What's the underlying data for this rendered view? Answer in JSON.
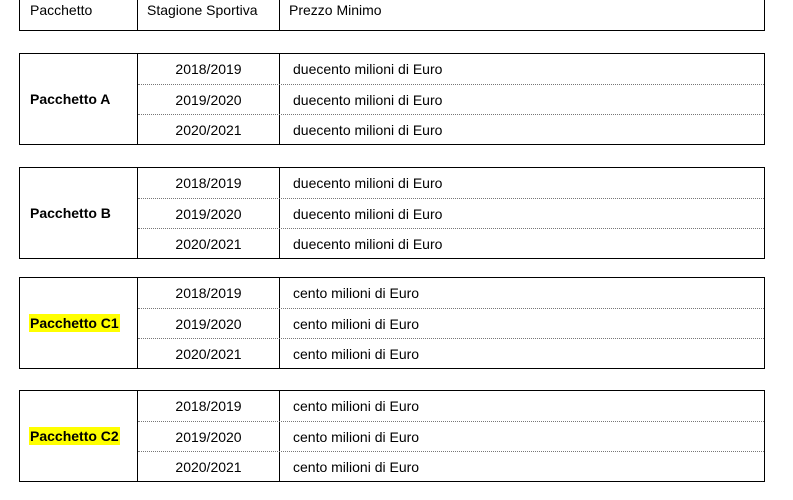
{
  "header": {
    "col1": "Pacchetto",
    "col2": "Stagione Sportiva",
    "col3": "Prezzo Minimo"
  },
  "packages": [
    {
      "name": "Pacchetto A",
      "highlighted": false,
      "rows": [
        {
          "season": "2018/2019",
          "price": "duecento milioni di Euro"
        },
        {
          "season": "2019/2020",
          "price": "duecento milioni di Euro"
        },
        {
          "season": "2020/2021",
          "price": "duecento milioni di Euro"
        }
      ]
    },
    {
      "name": "Pacchetto B",
      "highlighted": false,
      "rows": [
        {
          "season": "2018/2019",
          "price": "duecento milioni di Euro"
        },
        {
          "season": "2019/2020",
          "price": "duecento milioni di Euro"
        },
        {
          "season": "2020/2021",
          "price": "duecento milioni di Euro"
        }
      ]
    },
    {
      "name": "Pacchetto C1",
      "highlighted": true,
      "rows": [
        {
          "season": "2018/2019",
          "price": "cento milioni di Euro"
        },
        {
          "season": "2019/2020",
          "price": "cento milioni di Euro"
        },
        {
          "season": "2020/2021",
          "price": "cento milioni di Euro"
        }
      ]
    },
    {
      "name": "Pacchetto C2",
      "highlighted": true,
      "rows": [
        {
          "season": "2018/2019",
          "price": "cento milioni di Euro"
        },
        {
          "season": "2019/2020",
          "price": "cento milioni di Euro"
        },
        {
          "season": "2020/2021",
          "price": "cento milioni di Euro"
        }
      ]
    }
  ],
  "colors": {
    "highlight": "#ffff00",
    "border": "#000000"
  }
}
